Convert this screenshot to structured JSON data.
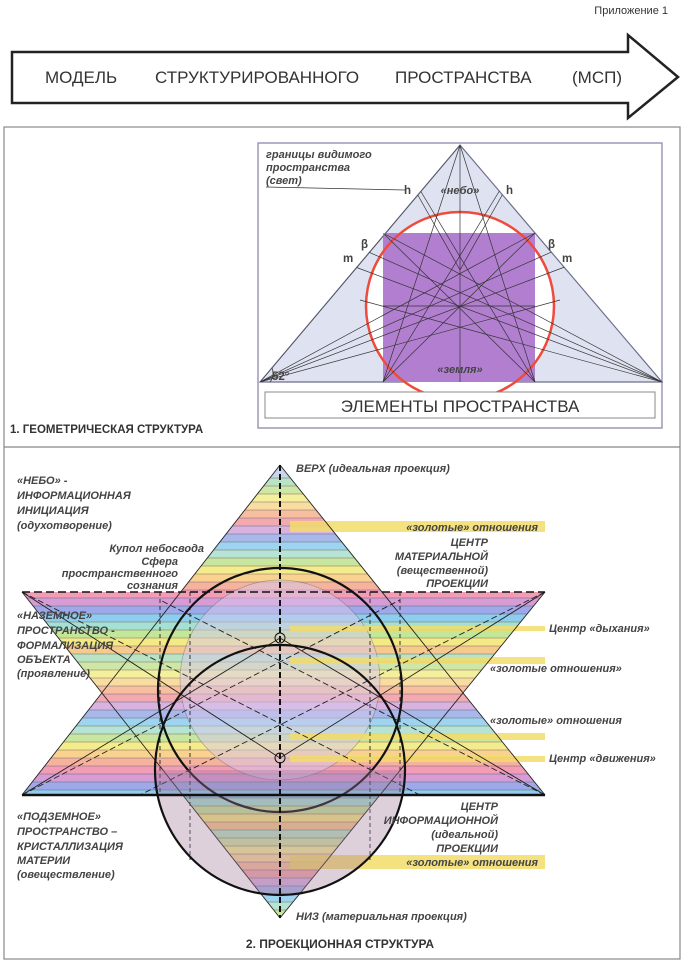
{
  "appendix_label": "Приложение 1",
  "banner": {
    "words": [
      "МОДЕЛЬ",
      "СТРУКТУРИРОВАННОГО",
      "ПРОСТРАНСТВА",
      "(МСП)"
    ]
  },
  "section1": {
    "title": "1. ГЕОМЕТРИЧЕСКАЯ СТРУКТУРА",
    "boundary_label": [
      "границы видимого",
      "пространства",
      "(свет)"
    ],
    "sky_label": "«небо»",
    "earth_label": "«земля»",
    "h_label": "h",
    "beta_label": "β",
    "m_label": "m",
    "angle_label": "52°",
    "elements_box": "ЭЛЕМЕНТЫ    ПРОСТРАНСТВА",
    "colors": {
      "triangle": "#dfe3f1",
      "square": "#b27fd0",
      "circle": "#ef4b3c"
    }
  },
  "section2": {
    "title": "2. ПРОЕКЦИОННАЯ СТРУКТУРА",
    "top_label": "ВЕРХ (идеальная проекция)",
    "bottom_label": "НИЗ (материальная проекция)",
    "sky_block": [
      "«НЕБО» -",
      "ИНФОРМАЦИОННАЯ",
      "ИНИЦИАЦИЯ",
      "(одухотворение)"
    ],
    "ground_block": [
      "«НАЗЕМНОЕ»",
      "ПРОСТРАНСТВО -",
      "ФОРМАЛИЗАЦИЯ",
      "ОБЪЕКТА",
      "(проявление)"
    ],
    "under_block": [
      "«ПОДЗЕМНОЕ»",
      "ПРОСТРАНСТВО –",
      "КРИСТАЛЛИЗАЦИЯ",
      "МАТЕРИИ",
      "(овеществление)"
    ],
    "dome_label": "Купол небосвода",
    "sphere_label": [
      "Сфера",
      "пространственного",
      "сознания"
    ],
    "material_center": [
      "ЦЕНТР",
      "МАТЕРИАЛЬНОЙ",
      "(вещественной)",
      "ПРОЕКЦИИ"
    ],
    "info_center": [
      "ЦЕНТР",
      "ИНФОРМАЦИОННОЙ",
      "(идеальной)",
      "ПРОЕКЦИИ"
    ],
    "golden_1": "«золотые» отношения",
    "breath_center": "Центр «дыхания»",
    "golden_2": "«золотые отношения»",
    "golden_3": "«золотые» отношения",
    "motion_center": "Центр «движения»",
    "golden_4": "«золотые» отношения",
    "colors": {
      "golden_bar": "#f2dc6a",
      "hexagram_blue": "#c9d6ee"
    },
    "band_colors": [
      "#b9e3c4",
      "#cfe7a6",
      "#f3ef9c",
      "#f9dca0",
      "#f6c0a0",
      "#f2a9b0",
      "#d9b3e0",
      "#a9b7ea",
      "#9fd4f0",
      "#b6e3d3",
      "#c8e6a0",
      "#f4ec8c",
      "#f8d28e",
      "#f5b39d",
      "#f39cb5",
      "#d79bd6",
      "#9fa8e8",
      "#8fcdef",
      "#a6e0d2",
      "#c3e79a",
      "#f3ea85",
      "#f7c98c"
    ]
  }
}
